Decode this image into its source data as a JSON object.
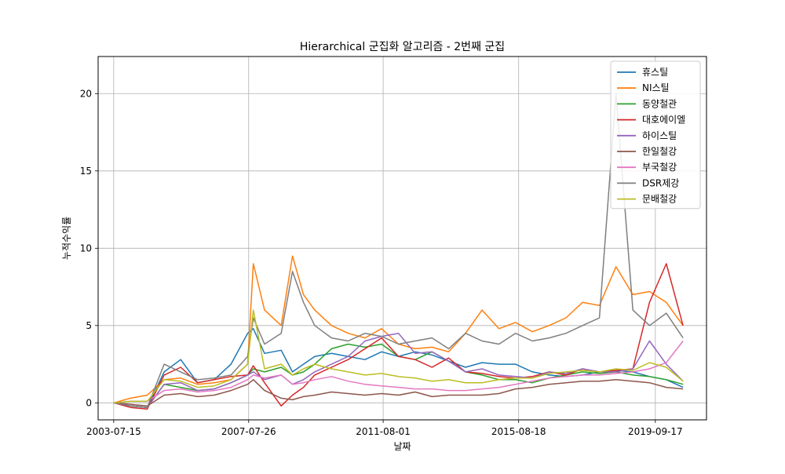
{
  "chart_data": {
    "type": "line",
    "title": "Hierarchical 군집화 알고리즘 - 2번째 군집",
    "xlabel": "날짜",
    "ylabel": "누적수익률",
    "x_range": [
      "2003-01-26",
      "2021-03-28"
    ],
    "ylim": [
      -1.1,
      22.4
    ],
    "x_ticks": [
      "2003-07-15",
      "2007-07-26",
      "2011-08-01",
      "2015-08-18",
      "2019-09-17"
    ],
    "y_ticks": [
      0,
      5,
      10,
      15,
      20
    ],
    "grid": true,
    "legend_position": "top-right",
    "x": [
      "2003-07-15",
      "2004-01-15",
      "2004-07-15",
      "2005-01-15",
      "2005-07-15",
      "2006-01-15",
      "2006-07-15",
      "2007-01-15",
      "2007-07-15",
      "2007-09-15",
      "2008-01-15",
      "2008-07-15",
      "2008-11-15",
      "2009-03-15",
      "2009-07-15",
      "2010-01-15",
      "2010-07-15",
      "2011-01-15",
      "2011-07-15",
      "2012-01-15",
      "2012-07-15",
      "2013-01-15",
      "2013-07-15",
      "2014-01-15",
      "2014-07-15",
      "2015-01-15",
      "2015-07-15",
      "2016-01-15",
      "2016-07-15",
      "2017-01-15",
      "2017-07-15",
      "2018-01-15",
      "2018-07-15",
      "2019-01-15",
      "2019-07-15",
      "2020-01-15",
      "2020-07-15"
    ],
    "series": [
      {
        "name": "휴스틸",
        "color": "#1f77b4",
        "values": [
          0,
          -0.2,
          -0.3,
          2.0,
          2.8,
          1.3,
          1.5,
          2.5,
          4.5,
          4.8,
          3.2,
          3.4,
          2.0,
          2.5,
          3.0,
          3.2,
          3.0,
          2.8,
          3.3,
          3.0,
          3.3,
          3.1,
          2.7,
          2.3,
          2.6,
          2.5,
          2.5,
          2.0,
          1.8,
          1.7,
          1.8,
          2.0,
          2.1,
          2.0,
          1.7,
          1.5,
          1.0
        ]
      },
      {
        "name": "NI스틸",
        "color": "#ff7f0e",
        "values": [
          0,
          0.3,
          0.5,
          1.5,
          1.6,
          1.2,
          1.3,
          1.5,
          2.5,
          9.0,
          6.0,
          5.0,
          9.5,
          7.0,
          6.0,
          5.0,
          4.5,
          4.2,
          4.8,
          3.8,
          3.5,
          3.6,
          3.3,
          4.5,
          6.0,
          4.8,
          5.2,
          4.6,
          5.0,
          5.5,
          6.5,
          6.3,
          8.8,
          7.0,
          7.2,
          6.5,
          5.0
        ]
      },
      {
        "name": "동양철관",
        "color": "#2ca02c",
        "values": [
          0,
          -0.2,
          -0.3,
          1.2,
          1.0,
          0.8,
          0.9,
          1.3,
          1.8,
          2.2,
          2.0,
          2.3,
          1.8,
          2.0,
          2.5,
          3.5,
          3.8,
          3.6,
          3.8,
          3.0,
          2.8,
          3.3,
          2.7,
          2.0,
          1.8,
          1.5,
          1.5,
          1.3,
          1.6,
          1.8,
          2.0,
          1.9,
          2.0,
          1.8,
          1.7,
          1.5,
          1.2
        ]
      },
      {
        "name": "대호에이엘",
        "color": "#d62728",
        "values": [
          0,
          -0.3,
          -0.4,
          1.8,
          2.3,
          1.3,
          1.5,
          1.7,
          1.8,
          2.4,
          1.3,
          -0.2,
          0.5,
          1.0,
          1.8,
          2.3,
          2.8,
          3.5,
          4.2,
          3.0,
          2.8,
          2.3,
          2.9,
          2.0,
          1.9,
          1.7,
          1.6,
          1.7,
          2.0,
          1.8,
          2.2,
          2.0,
          2.1,
          2.2,
          6.5,
          9.0,
          5.0
        ]
      },
      {
        "name": "하이스틸",
        "color": "#9467bd",
        "values": [
          0,
          -0.2,
          -0.3,
          1.2,
          1.3,
          0.8,
          0.9,
          1.3,
          1.8,
          2.0,
          1.5,
          1.8,
          1.2,
          1.5,
          2.0,
          2.5,
          3.0,
          4.0,
          4.3,
          4.5,
          3.2,
          3.3,
          2.7,
          2.0,
          2.2,
          1.8,
          1.7,
          1.6,
          2.0,
          1.9,
          2.2,
          2.0,
          2.0,
          2.2,
          4.0,
          2.5,
          1.4
        ]
      },
      {
        "name": "한일철강",
        "color": "#8c564b",
        "values": [
          0,
          -0.1,
          -0.2,
          0.5,
          0.6,
          0.4,
          0.5,
          0.8,
          1.2,
          1.5,
          0.8,
          0.3,
          0.2,
          0.4,
          0.5,
          0.7,
          0.6,
          0.5,
          0.6,
          0.5,
          0.7,
          0.4,
          0.5,
          0.5,
          0.5,
          0.6,
          0.9,
          1.0,
          1.2,
          1.3,
          1.4,
          1.4,
          1.5,
          1.4,
          1.3,
          1.0,
          0.9
        ]
      },
      {
        "name": "부국철강",
        "color": "#e377c2",
        "values": [
          0,
          0.1,
          0.1,
          0.8,
          0.9,
          0.7,
          0.8,
          1.0,
          1.5,
          1.8,
          1.6,
          1.8,
          1.2,
          1.3,
          1.5,
          1.7,
          1.4,
          1.2,
          1.1,
          1.0,
          0.9,
          0.9,
          0.8,
          0.8,
          0.9,
          1.0,
          1.2,
          1.4,
          1.6,
          1.7,
          1.8,
          1.8,
          1.9,
          2.0,
          2.2,
          2.6,
          4.0
        ]
      },
      {
        "name": "DSR제강",
        "color": "#7f7f7f",
        "values": [
          0,
          -0.2,
          -0.3,
          2.5,
          2.0,
          1.5,
          1.6,
          1.8,
          3.0,
          5.5,
          3.8,
          4.5,
          8.5,
          6.5,
          5.0,
          4.2,
          4.0,
          4.5,
          4.3,
          3.8,
          4.0,
          4.2,
          3.5,
          4.5,
          4.0,
          3.8,
          4.5,
          4.0,
          4.2,
          4.5,
          5.0,
          5.5,
          20.0,
          6.0,
          5.0,
          5.8,
          4.2
        ]
      },
      {
        "name": "문배철강",
        "color": "#bcbd22",
        "values": [
          0,
          0.1,
          0.1,
          1.5,
          1.4,
          1.0,
          1.1,
          1.5,
          2.5,
          6.0,
          2.2,
          2.5,
          1.8,
          2.2,
          2.5,
          2.2,
          2.0,
          1.8,
          1.9,
          1.7,
          1.6,
          1.4,
          1.5,
          1.3,
          1.3,
          1.5,
          1.6,
          1.6,
          1.9,
          2.0,
          2.1,
          2.0,
          2.2,
          2.1,
          2.6,
          2.3,
          1.4
        ]
      }
    ]
  }
}
